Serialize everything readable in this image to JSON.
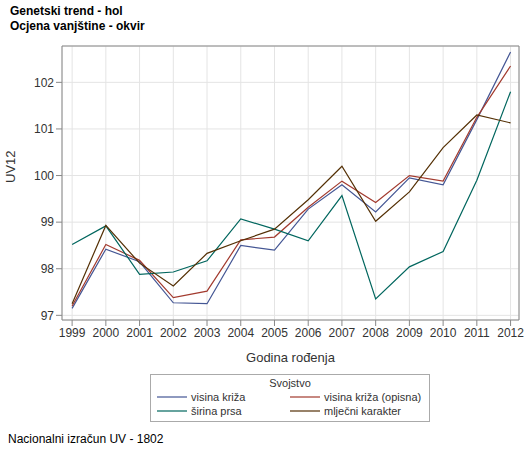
{
  "chart_data": {
    "type": "line",
    "title": "Genetski trend - hol",
    "subtitle": "Ocjena vanjštine - okvir",
    "x_label": "Godina rođenja",
    "y_label": "UV12",
    "legend_title": "Svojstvo",
    "footnote": "Nacionalni izračun UV - 1802",
    "x": [
      1999,
      2000,
      2001,
      2002,
      2003,
      2004,
      2005,
      2006,
      2007,
      2008,
      2009,
      2010,
      2011,
      2012
    ],
    "xlim": [
      1998.7,
      2012.25
    ],
    "xticks": [
      1999,
      2000,
      2001,
      2002,
      2003,
      2004,
      2005,
      2006,
      2007,
      2008,
      2009,
      2010,
      2011,
      2012
    ],
    "ylim": [
      96.9,
      102.78
    ],
    "yticks": [
      97,
      98,
      99,
      100,
      101,
      102
    ],
    "grid": true,
    "legend": "bottom",
    "series": [
      {
        "name": "visina križa",
        "color": "#445694",
        "values": [
          97.15,
          98.42,
          98.15,
          97.27,
          97.25,
          98.5,
          98.4,
          99.28,
          99.8,
          99.22,
          99.95,
          99.8,
          101.2,
          102.65
        ]
      },
      {
        "name": "visina križa (opisna)",
        "color": "#a23a2e",
        "values": [
          97.2,
          98.52,
          98.18,
          97.38,
          97.52,
          98.62,
          98.68,
          99.32,
          99.88,
          99.42,
          100.0,
          99.88,
          101.25,
          102.35
        ]
      },
      {
        "name": "širina prsa",
        "color": "#01665e",
        "values": [
          98.52,
          98.92,
          97.88,
          97.93,
          98.17,
          99.07,
          98.85,
          98.6,
          99.57,
          97.35,
          98.04,
          98.37,
          99.9,
          101.8
        ]
      },
      {
        "name": "mlječni karakter",
        "color": "#543005",
        "values": [
          97.25,
          98.93,
          98.12,
          97.63,
          98.33,
          98.6,
          98.85,
          99.48,
          100.2,
          99.02,
          99.65,
          100.6,
          101.3,
          101.13
        ]
      }
    ]
  }
}
